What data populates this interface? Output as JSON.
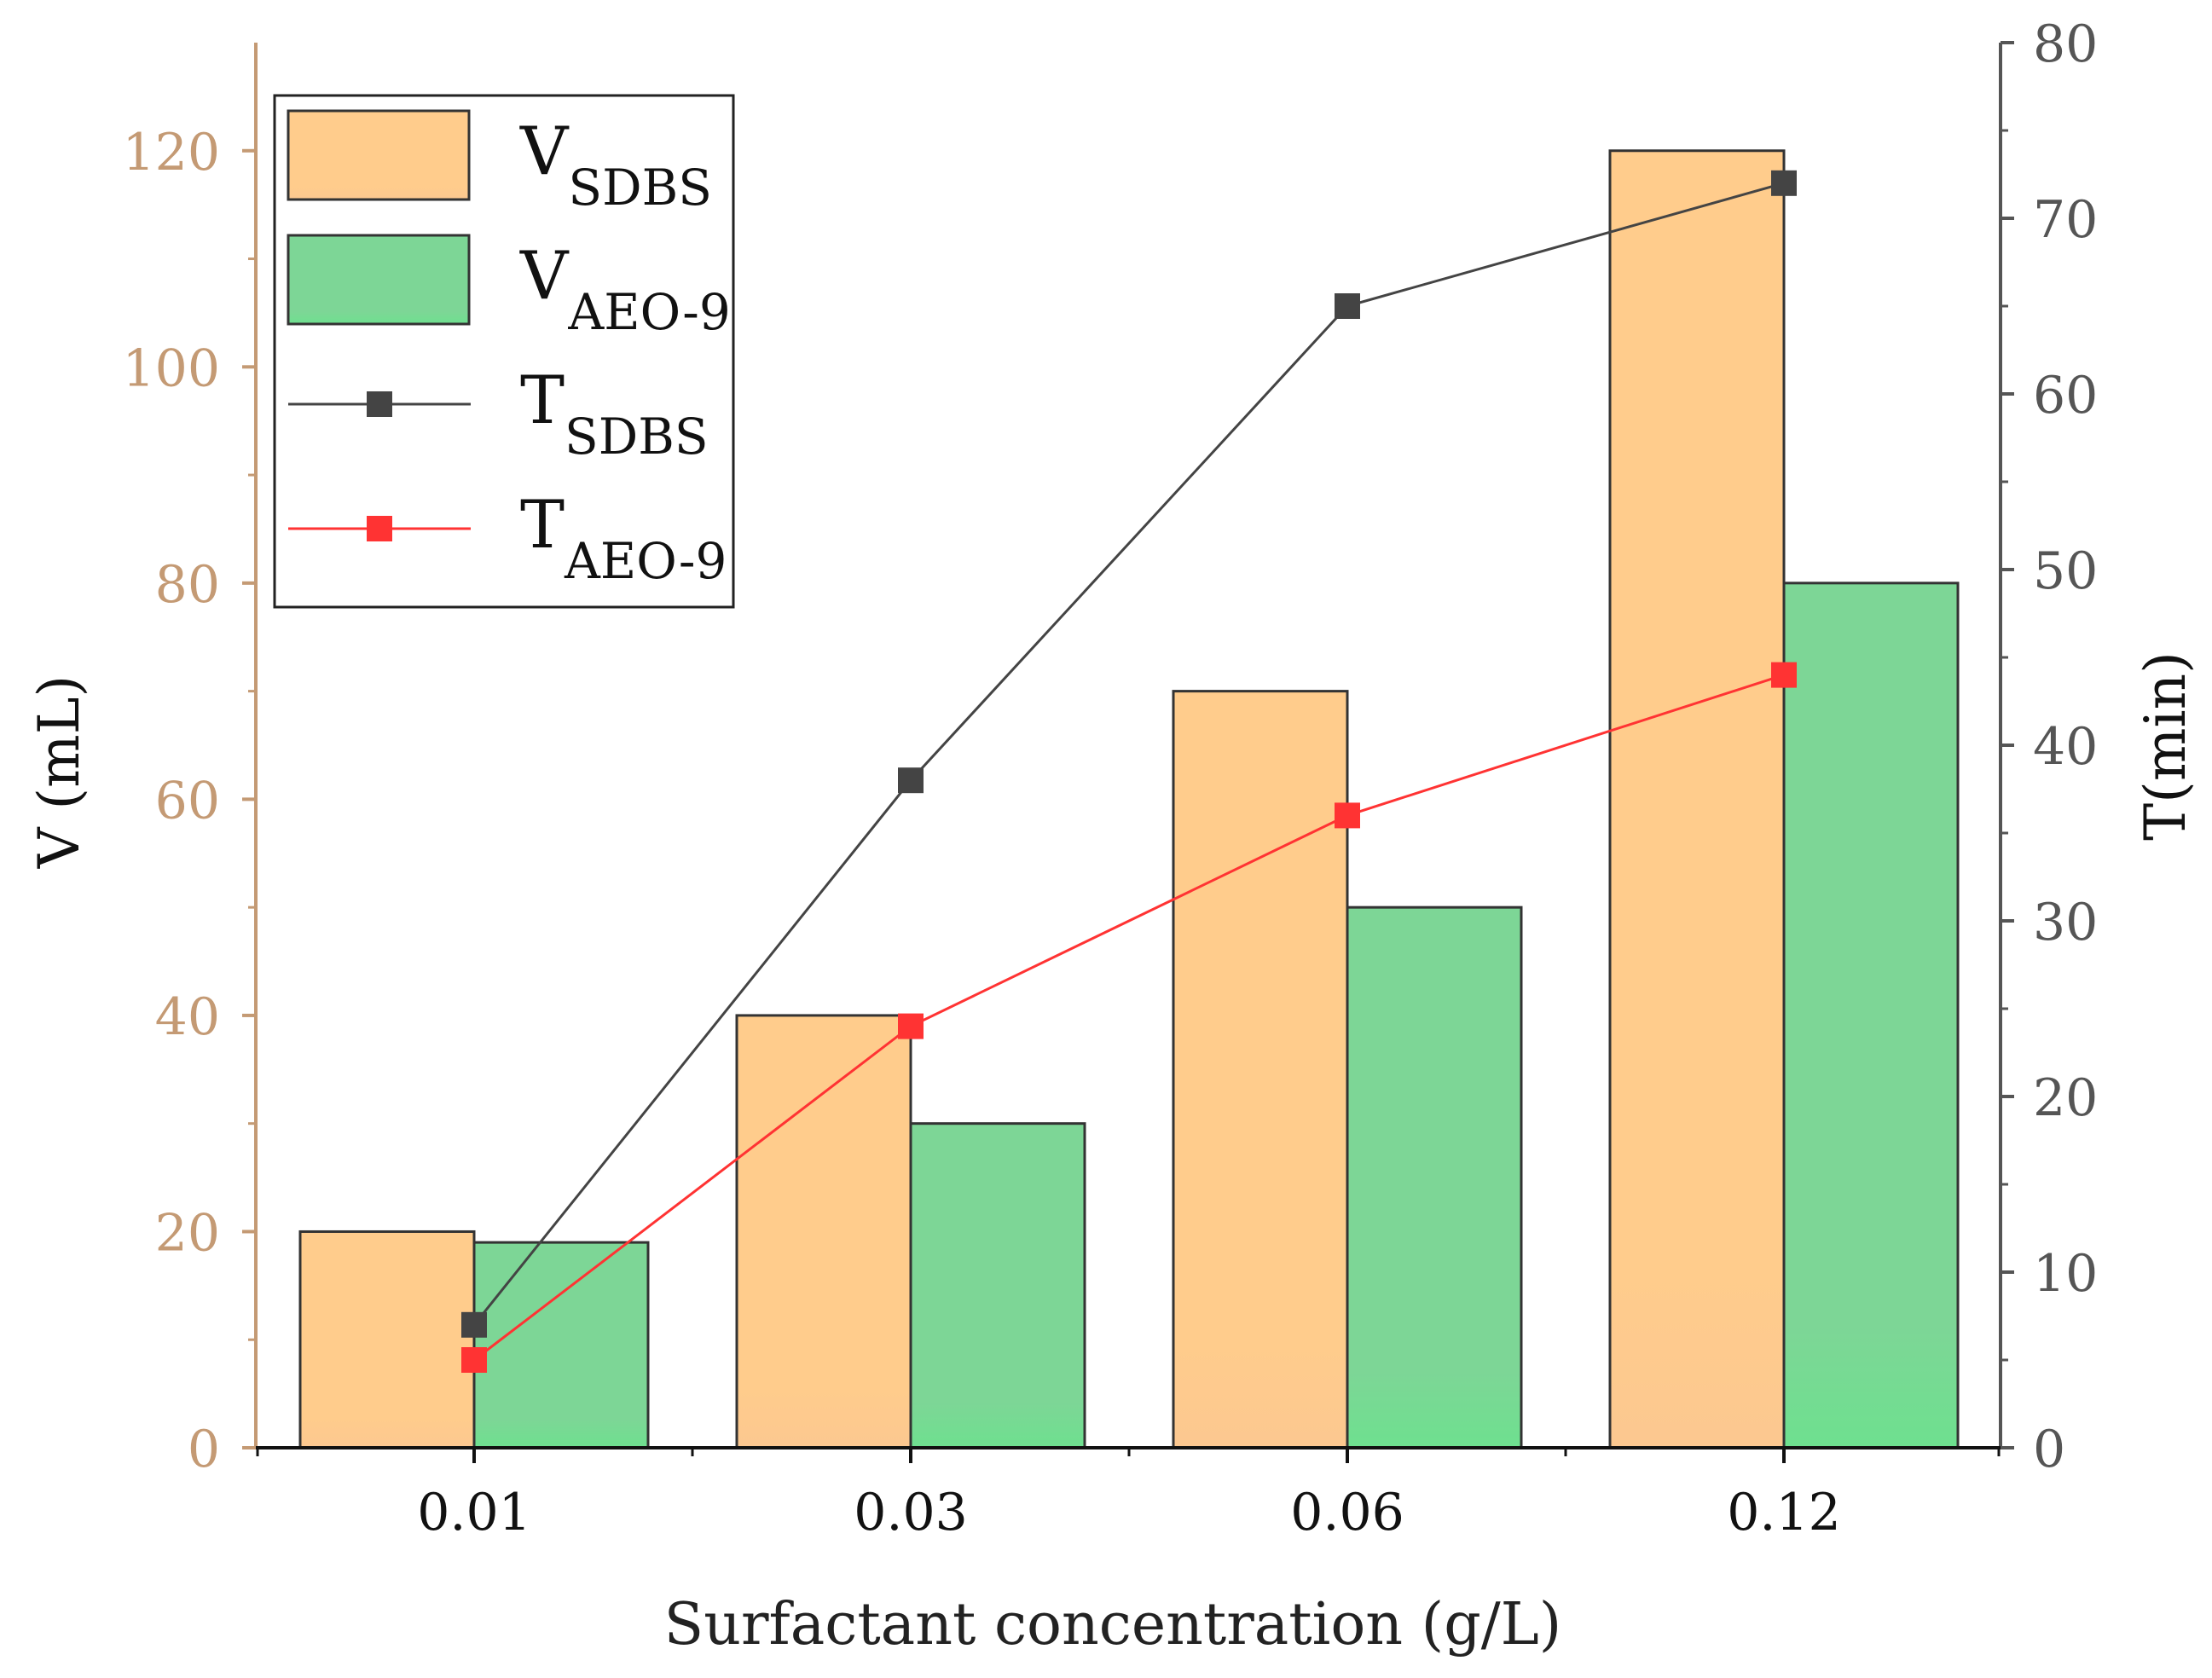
{
  "colors": {
    "sdbs_bar": "#ffcc8c",
    "aeo_bar": "#7dd696",
    "sdbs_line": "#444444",
    "aeo_line": "#ff3333",
    "left_axis": "#c49a74",
    "right_axis": "#555555"
  },
  "chart_data": {
    "type": "bar",
    "xlabel": "Surfactant concentration (g/L)",
    "ylabel": "V (mL)",
    "y2label": "T(min)",
    "categories": [
      "0.01",
      "0.03",
      "0.06",
      "0.12"
    ],
    "ylim": [
      0,
      130
    ],
    "y2lim": [
      0,
      80
    ],
    "yticks": [
      0,
      20,
      40,
      60,
      80,
      100,
      120
    ],
    "y2ticks": [
      0,
      10,
      20,
      30,
      40,
      50,
      60,
      70,
      80
    ],
    "bar_series": [
      {
        "name": "V",
        "sub": "SDBS",
        "values": [
          20,
          40,
          70,
          120
        ]
      },
      {
        "name": "V",
        "sub": "AEO-9",
        "values": [
          19,
          30,
          50,
          80
        ]
      }
    ],
    "line_series": [
      {
        "name": "T",
        "sub": "SDBS",
        "values": [
          7,
          38,
          65,
          72
        ]
      },
      {
        "name": "T",
        "sub": "AEO-9",
        "values": [
          5,
          24,
          36,
          44
        ]
      }
    ],
    "legend_position": "top-left"
  }
}
